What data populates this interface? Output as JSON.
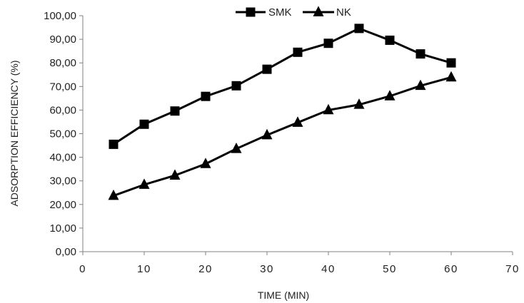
{
  "chart_data": {
    "type": "line",
    "title": "",
    "xlabel": "TIME (MIN)",
    "ylabel": "ADSORPTION EFFICIENCY (%)",
    "xlim": [
      0,
      70
    ],
    "ylim": [
      0,
      100
    ],
    "x_ticks": [
      "0",
      "10",
      "20",
      "30",
      "40",
      "50",
      "60",
      "70"
    ],
    "y_ticks": [
      "0,00",
      "10,00",
      "20,00",
      "30,00",
      "40,00",
      "50,00",
      "60,00",
      "70,00",
      "80,00",
      "90,00",
      "100,00"
    ],
    "grid": false,
    "legend_position": "top-center",
    "x": [
      5,
      10,
      15,
      20,
      25,
      30,
      35,
      40,
      45,
      50,
      55,
      60
    ],
    "series": [
      {
        "name": "SMK",
        "marker": "square",
        "color": "#000000",
        "values": [
          45.5,
          54.0,
          59.6,
          65.8,
          70.3,
          77.3,
          84.5,
          88.3,
          94.6,
          89.6,
          83.8,
          80.0
        ]
      },
      {
        "name": "NK",
        "marker": "triangle",
        "color": "#000000",
        "values": [
          23.7,
          28.4,
          32.3,
          37.2,
          43.6,
          49.4,
          54.7,
          60.0,
          62.3,
          65.9,
          70.3,
          73.9
        ]
      }
    ]
  }
}
